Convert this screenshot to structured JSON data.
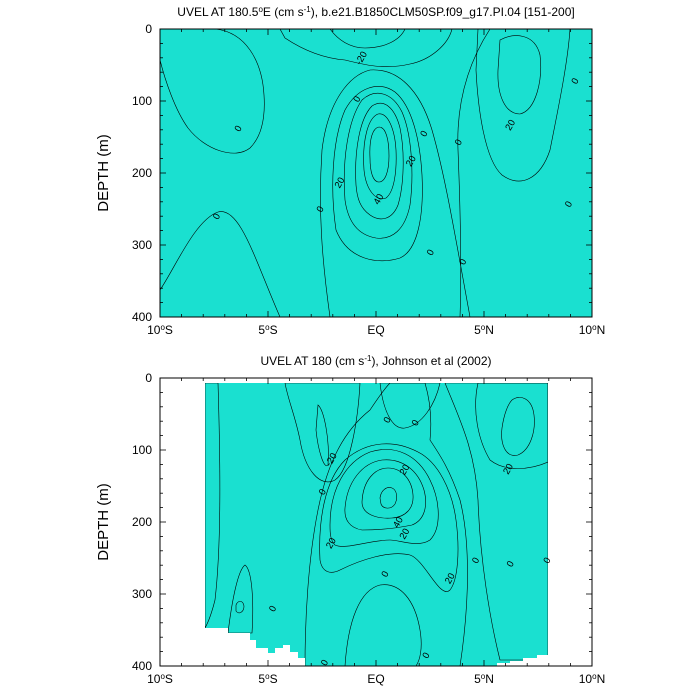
{
  "colors": {
    "c_m20": "#00c5ff",
    "c_m10": "#4ce6ff",
    "c_0": "#1ae0d0",
    "c_10": "#00e33c",
    "c_20": "#88ea1a",
    "c_30": "#ffff00",
    "c_35": "#ffcc33",
    "c_40": "#ffa840",
    "c_50": "#ff8c38",
    "line": "#000000"
  },
  "chart_data": [
    {
      "type": "contour",
      "title_parts": [
        "UVEL AT 180.5",
        "o",
        "E (cm s",
        "-1",
        "), b.e21.B1850CLM50SP.f09_g17.PI.04 [151-200]"
      ],
      "ylabel": "DEPTH (m)",
      "xlim": [
        -10,
        10
      ],
      "ylim": [
        400,
        0
      ],
      "xticks": [
        {
          "value": -10,
          "label": "10",
          "sup": "o",
          "suffix": "S"
        },
        {
          "value": -5,
          "label": "5",
          "sup": "o",
          "suffix": "S"
        },
        {
          "value": 0,
          "label": "EQ",
          "sup": "",
          "suffix": ""
        },
        {
          "value": 5,
          "label": "5",
          "sup": "o",
          "suffix": "N"
        },
        {
          "value": 10,
          "label": "10",
          "sup": "o",
          "suffix": "N"
        }
      ],
      "yticks": [
        0,
        100,
        200,
        300,
        400
      ],
      "contour_labels": [
        {
          "x": -6.4,
          "y": 138,
          "text": "0"
        },
        {
          "x": -7.4,
          "y": 260,
          "text": "0"
        },
        {
          "x": -0.9,
          "y": 97,
          "text": "0"
        },
        {
          "x": -2.6,
          "y": 250,
          "text": "0"
        },
        {
          "x": 2.2,
          "y": 145,
          "text": "0"
        },
        {
          "x": 3.8,
          "y": 157,
          "text": "0"
        },
        {
          "x": 2.5,
          "y": 310,
          "text": "0"
        },
        {
          "x": 4.0,
          "y": 323,
          "text": "0"
        },
        {
          "x": 9.2,
          "y": 72,
          "text": "0"
        },
        {
          "x": 8.9,
          "y": 243,
          "text": "0"
        },
        {
          "x": -0.7,
          "y": 40,
          "text": "-20"
        },
        {
          "x": -1.7,
          "y": 213,
          "text": "20"
        },
        {
          "x": 1.6,
          "y": 183,
          "text": "20"
        },
        {
          "x": 6.2,
          "y": 133,
          "text": "20"
        },
        {
          "x": 0.1,
          "y": 236,
          "text": "40"
        }
      ]
    },
    {
      "type": "contour",
      "title_parts": [
        "UVEL AT 180 (cm s",
        "-1",
        "), Johnson et al (2002)"
      ],
      "ylabel": "DEPTH (m)",
      "xlim": [
        -10,
        10
      ],
      "ylim": [
        400,
        0
      ],
      "xticks": [
        {
          "value": -10,
          "label": "10",
          "sup": "o",
          "suffix": "S"
        },
        {
          "value": -5,
          "label": "5",
          "sup": "o",
          "suffix": "S"
        },
        {
          "value": 0,
          "label": "EQ",
          "sup": "",
          "suffix": ""
        },
        {
          "value": 5,
          "label": "5",
          "sup": "o",
          "suffix": "N"
        },
        {
          "value": 10,
          "label": "10",
          "sup": "o",
          "suffix": "N"
        }
      ],
      "yticks": [
        0,
        100,
        200,
        300,
        400
      ],
      "contour_labels": [
        {
          "x": -2.5,
          "y": 158,
          "text": "0"
        },
        {
          "x": 0.5,
          "y": 58,
          "text": "0"
        },
        {
          "x": 1.8,
          "y": 62,
          "text": "0"
        },
        {
          "x": 0.4,
          "y": 272,
          "text": "0"
        },
        {
          "x": -4.8,
          "y": 320,
          "text": "0"
        },
        {
          "x": -2.4,
          "y": 395,
          "text": "0"
        },
        {
          "x": 2.3,
          "y": 385,
          "text": "0"
        },
        {
          "x": 4.6,
          "y": 253,
          "text": "0"
        },
        {
          "x": 6.2,
          "y": 258,
          "text": "0"
        },
        {
          "x": 7.9,
          "y": 253,
          "text": "0"
        },
        {
          "x": -2.1,
          "y": 229,
          "text": "20"
        },
        {
          "x": 1.3,
          "y": 127,
          "text": "20"
        },
        {
          "x": 1.3,
          "y": 216,
          "text": "20"
        },
        {
          "x": 3.4,
          "y": 278,
          "text": "20"
        },
        {
          "x": 6.1,
          "y": 126,
          "text": "20"
        },
        {
          "x": 1.0,
          "y": 200,
          "text": "40"
        },
        {
          "x": -2.1,
          "y": 113,
          "text": "-20"
        }
      ]
    }
  ]
}
